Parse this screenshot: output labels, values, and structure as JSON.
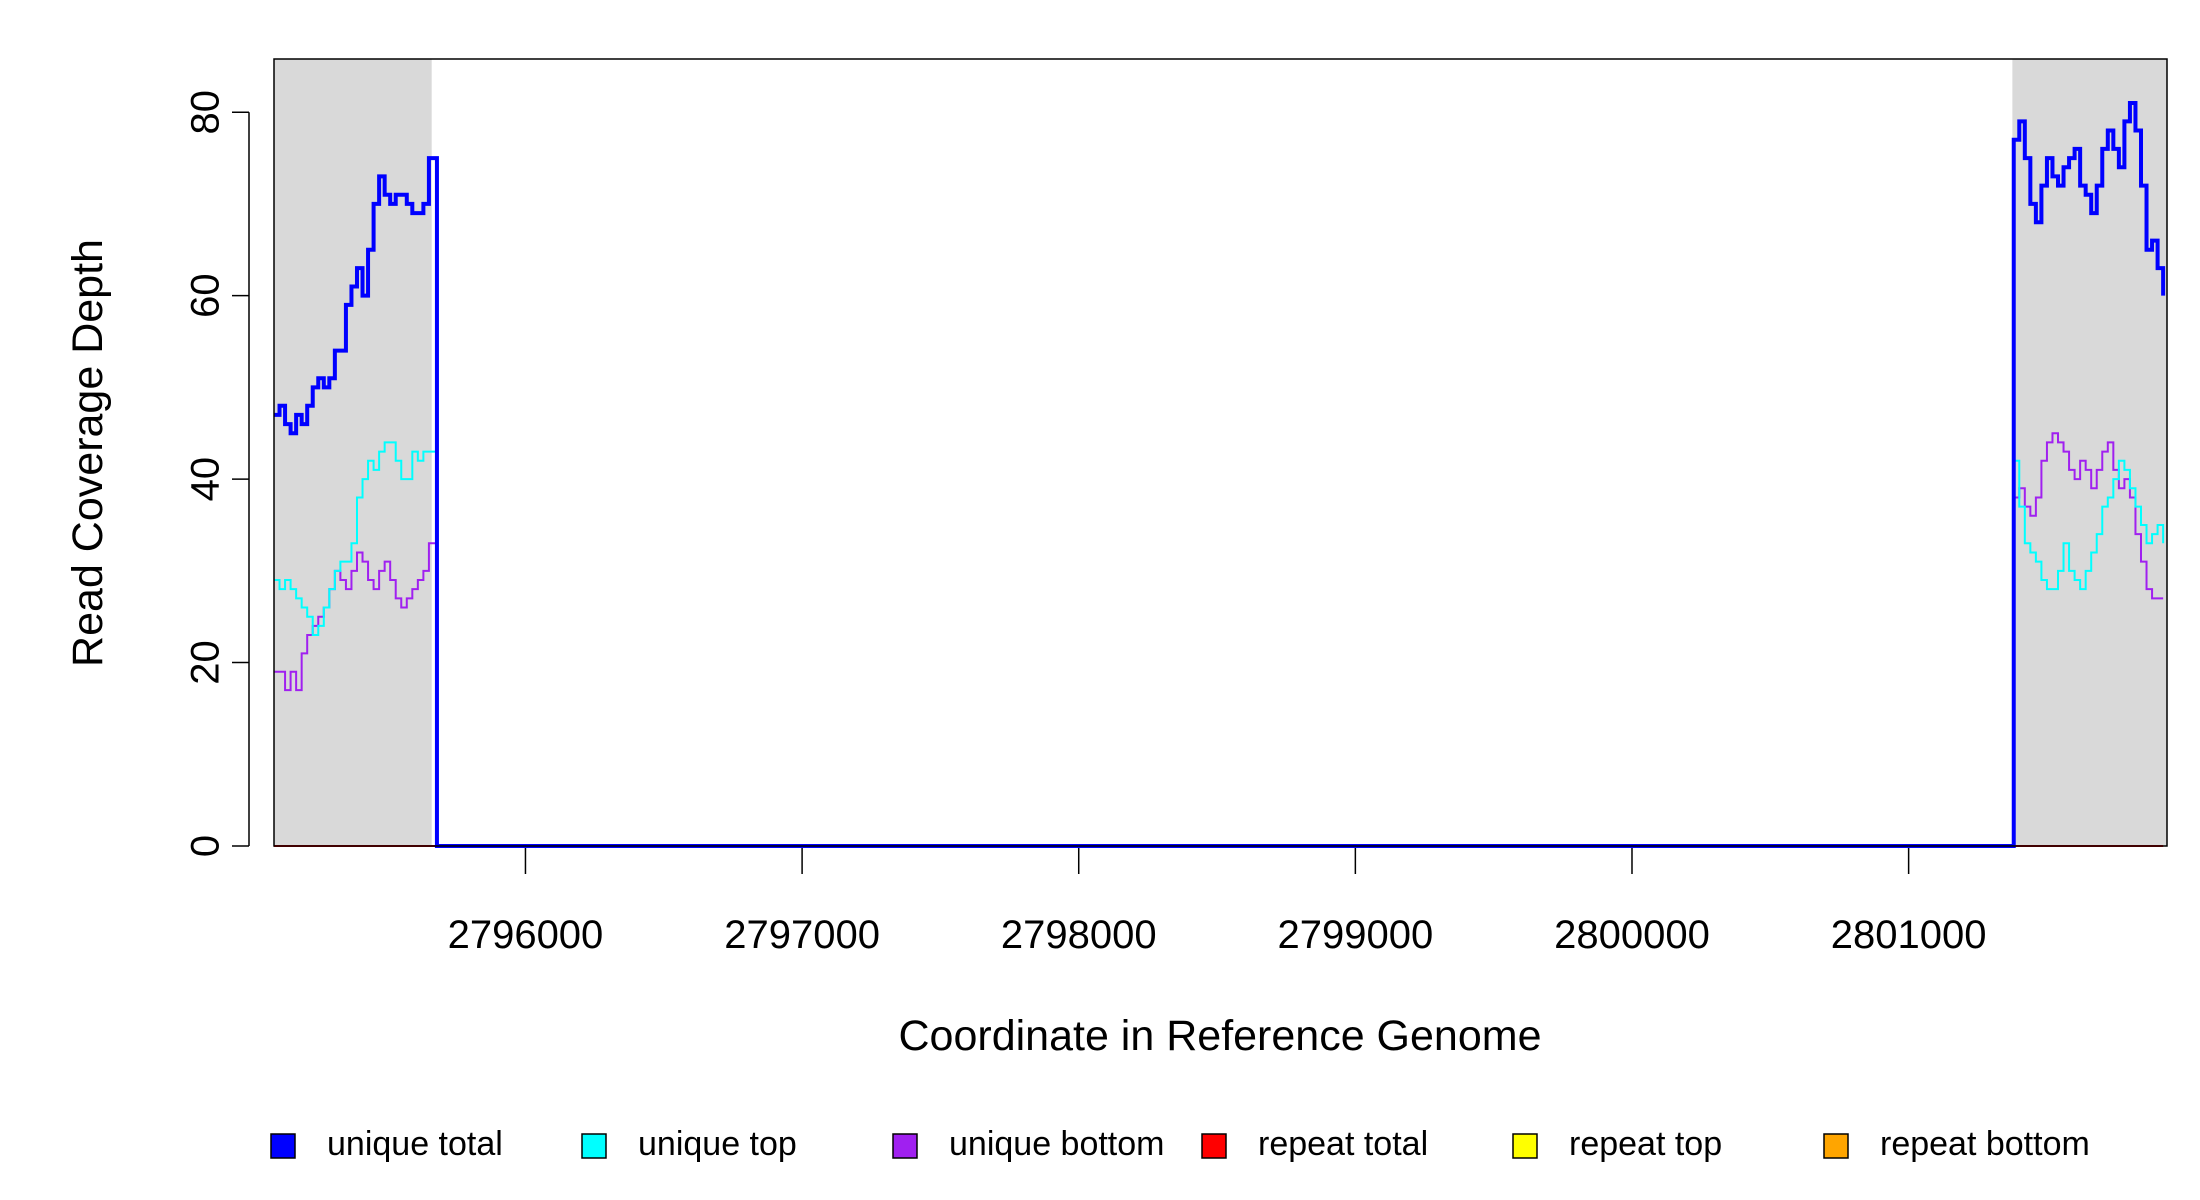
{
  "chart_data": {
    "type": "line",
    "step": true,
    "x_label": "Coordinate in Reference Genome",
    "y_label": "Read Coverage Depth",
    "xlim": [
      2795091,
      2801934
    ],
    "ylim": [
      0,
      85.8
    ],
    "xticks": [
      2796000,
      2797000,
      2798000,
      2799000,
      2800000,
      2801000
    ],
    "yticks": [
      0,
      20,
      40,
      60,
      80
    ],
    "shaded_regions": [
      [
        2795091,
        2795661
      ],
      [
        2801375,
        2801934
      ]
    ],
    "shade_color": "#d9d9d9",
    "x": [
      2795091,
      2795111,
      2795131,
      2795151,
      2795171,
      2795191,
      2795211,
      2795231,
      2795251,
      2795271,
      2795291,
      2795311,
      2795331,
      2795351,
      2795371,
      2795391,
      2795411,
      2795431,
      2795451,
      2795471,
      2795491,
      2795511,
      2795531,
      2795551,
      2795571,
      2795591,
      2795611,
      2795631,
      2795651,
      2795680,
      2801360,
      2801380,
      2801400,
      2801420,
      2801440,
      2801460,
      2801480,
      2801500,
      2801520,
      2801540,
      2801560,
      2801580,
      2801600,
      2801620,
      2801640,
      2801660,
      2801680,
      2801700,
      2801720,
      2801740,
      2801760,
      2801780,
      2801800,
      2801820,
      2801840,
      2801860,
      2801880,
      2801900,
      2801920
    ],
    "series": [
      {
        "name": "unique total",
        "color": "#0000ff",
        "width": 4,
        "values": [
          47,
          48,
          46,
          45,
          47,
          46,
          48,
          50,
          51,
          50,
          51,
          54,
          54,
          59,
          61,
          63,
          60,
          65,
          70,
          73,
          71,
          70,
          71,
          71,
          70,
          69,
          69,
          70,
          75,
          0,
          0,
          77,
          79,
          75,
          70,
          68,
          72,
          75,
          73,
          72,
          74,
          75,
          76,
          72,
          71,
          69,
          72,
          76,
          78,
          76,
          74,
          79,
          81,
          78,
          72,
          65,
          66,
          63,
          60
        ]
      },
      {
        "name": "unique top",
        "color": "#00ffff",
        "width": 2,
        "values": [
          29,
          28,
          29,
          28,
          27,
          26,
          25,
          23,
          24,
          26,
          28,
          30,
          31,
          31,
          33,
          38,
          40,
          42,
          41,
          43,
          44,
          44,
          42,
          40,
          40,
          43,
          42,
          43,
          43,
          0,
          0,
          42,
          37,
          33,
          32,
          31,
          29,
          28,
          28,
          30,
          33,
          30,
          29,
          28,
          30,
          32,
          34,
          37,
          38,
          40,
          42,
          41,
          39,
          37,
          35,
          33,
          34,
          35,
          33
        ]
      },
      {
        "name": "unique bottom",
        "color": "#a020f0",
        "width": 2,
        "values": [
          19,
          19,
          17,
          19,
          17,
          21,
          23,
          24,
          25,
          26,
          28,
          30,
          29,
          28,
          30,
          32,
          31,
          29,
          28,
          30,
          31,
          29,
          27,
          26,
          27,
          28,
          29,
          30,
          33,
          0,
          0,
          38,
          39,
          37,
          36,
          38,
          42,
          44,
          45,
          44,
          43,
          41,
          40,
          42,
          41,
          39,
          41,
          43,
          44,
          41,
          39,
          40,
          38,
          34,
          31,
          28,
          27,
          27,
          27
        ]
      },
      {
        "name": "repeat total",
        "color": "#ff0000",
        "width": 2,
        "values": [
          0,
          0,
          0,
          0,
          0,
          0,
          0,
          0,
          0,
          0,
          0,
          0,
          0,
          0,
          0,
          0,
          0,
          0,
          0,
          0,
          0,
          0,
          0,
          0,
          0,
          0,
          0,
          0,
          0,
          0,
          0,
          0,
          0,
          0,
          0,
          0,
          0,
          0,
          0,
          0,
          0,
          0,
          0,
          0,
          0,
          0,
          0,
          0,
          0,
          0,
          0,
          0,
          0,
          0,
          0,
          0,
          0,
          0,
          0
        ]
      },
      {
        "name": "repeat top",
        "color": "#ffff00",
        "width": 2,
        "values": [
          0,
          0,
          0,
          0,
          0,
          0,
          0,
          0,
          0,
          0,
          0,
          0,
          0,
          0,
          0,
          0,
          0,
          0,
          0,
          0,
          0,
          0,
          0,
          0,
          0,
          0,
          0,
          0,
          0,
          0,
          0,
          0,
          0,
          0,
          0,
          0,
          0,
          0,
          0,
          0,
          0,
          0,
          0,
          0,
          0,
          0,
          0,
          0,
          0,
          0,
          0,
          0,
          0,
          0,
          0,
          0,
          0,
          0,
          0
        ]
      },
      {
        "name": "repeat bottom",
        "color": "#ffa500",
        "width": 2,
        "values": [
          0,
          0,
          0,
          0,
          0,
          0,
          0,
          0,
          0,
          0,
          0,
          0,
          0,
          0,
          0,
          0,
          0,
          0,
          0,
          0,
          0,
          0,
          0,
          0,
          0,
          0,
          0,
          0,
          0,
          0,
          0,
          0,
          0,
          0,
          0,
          0,
          0,
          0,
          0,
          0,
          0,
          0,
          0,
          0,
          0,
          0,
          0,
          0,
          0,
          0,
          0,
          0,
          0,
          0,
          0,
          0,
          0,
          0,
          0
        ]
      }
    ],
    "legend": "bottom"
  }
}
